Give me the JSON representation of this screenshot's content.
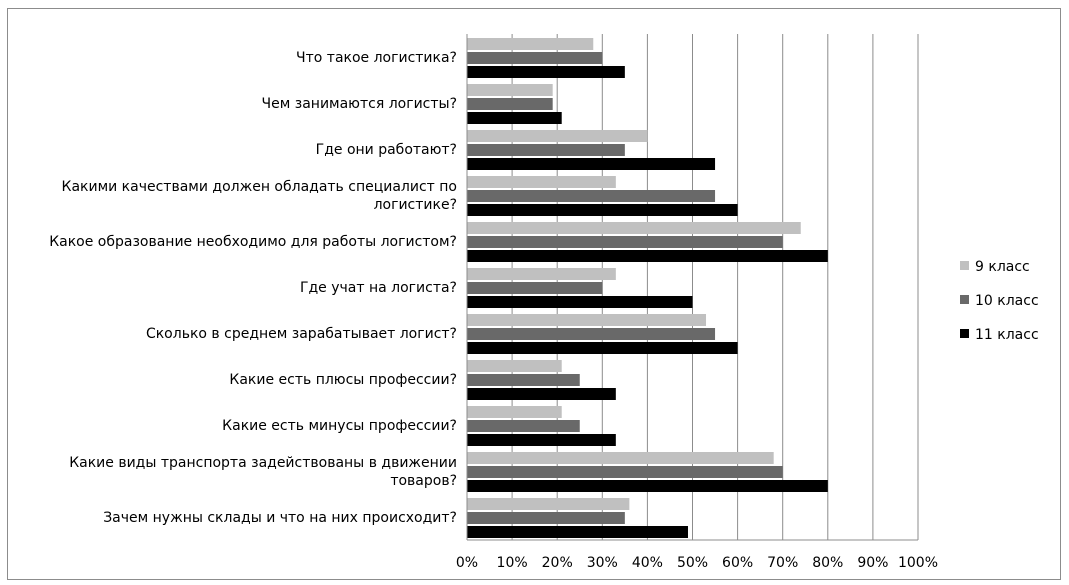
{
  "chart_data": {
    "type": "bar",
    "orientation": "horizontal",
    "categories": [
      [
        "Что такое логистика?"
      ],
      [
        "Чем занимаются логисты?"
      ],
      [
        "Где они работают?"
      ],
      [
        "Какими качествами должен обладать специалист по",
        "логистике?"
      ],
      [
        "Какое образование необходимо для работы логистом?"
      ],
      [
        "Где учат на логиста?"
      ],
      [
        "Сколько в среднем зарабатывает логист?"
      ],
      [
        "Какие есть плюсы профессии?"
      ],
      [
        "Какие есть минусы профессии?"
      ],
      [
        "Какие виды транспорта задействованы в движении",
        "товаров?"
      ],
      [
        "Зачем нужны склады и что на них происходит?"
      ]
    ],
    "series": [
      {
        "name": "9 класс",
        "color": "#c0c0c0",
        "values": [
          28,
          19,
          40,
          33,
          74,
          33,
          53,
          21,
          21,
          68,
          36
        ]
      },
      {
        "name": "10 класс",
        "color": "#696969",
        "values": [
          30,
          19,
          35,
          55,
          70,
          30,
          55,
          25,
          25,
          70,
          35
        ]
      },
      {
        "name": "11 класс",
        "color": "#000000",
        "values": [
          35,
          21,
          55,
          60,
          80,
          50,
          60,
          33,
          33,
          80,
          49
        ]
      }
    ],
    "x_ticks": [
      "0%",
      "10%",
      "20%",
      "30%",
      "40%",
      "50%",
      "60%",
      "70%",
      "80%",
      "90%",
      "100%"
    ],
    "xlim": [
      0,
      100
    ],
    "grid": true,
    "legend_position": "right"
  }
}
